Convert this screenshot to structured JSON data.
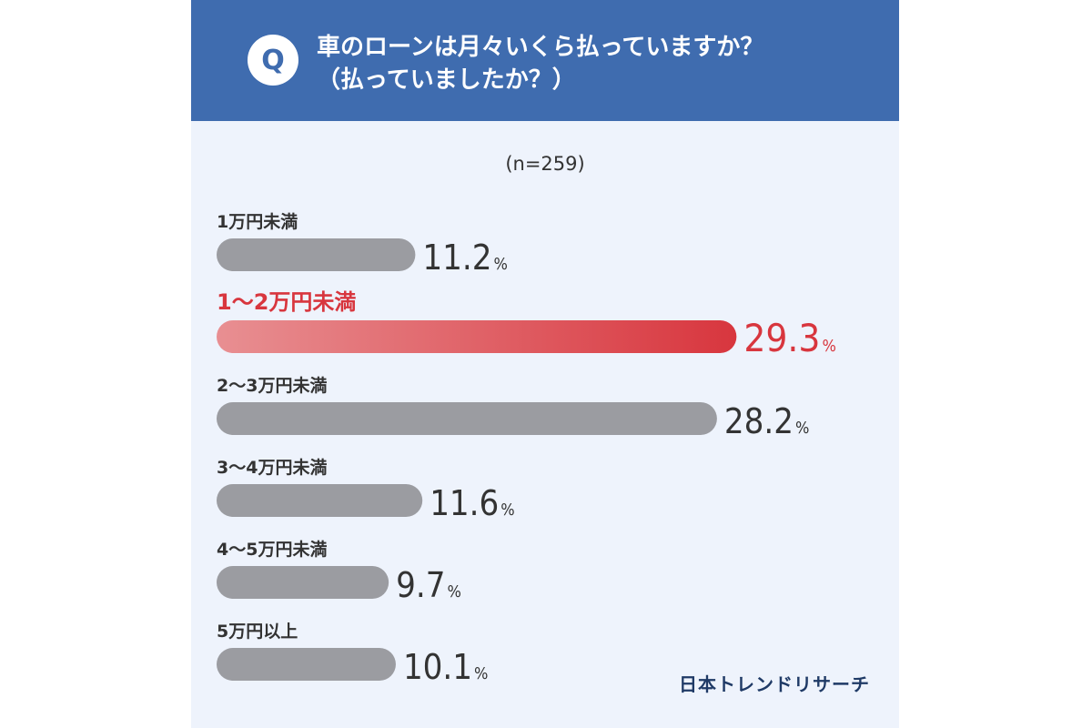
{
  "header": {
    "badge": "Q",
    "question_line1": "車のローンは月々いくら払っていますか？",
    "question_line2": "（払っていましたか？）"
  },
  "sample_size": "(n=259)",
  "brand": "日本トレンドリサーチ",
  "colors": {
    "header_bg": "#3f6caf",
    "card_bg": "#eef3fc",
    "bar_gray": "#9b9ca1",
    "highlight_red": "#d8363e",
    "highlight_red_light": "#e88f92",
    "text_dark": "#333333"
  },
  "chart_data": {
    "type": "bar",
    "orientation": "horizontal",
    "categories": [
      "1万円未満",
      "1〜2万円未満",
      "2〜3万円未満",
      "3〜4万円未満",
      "4〜5万円未満",
      "5万円以上"
    ],
    "values": [
      11.2,
      29.3,
      28.2,
      11.6,
      9.7,
      10.1
    ],
    "value_labels": [
      "11.2",
      "29.3",
      "28.2",
      "11.6",
      "9.7",
      "10.1"
    ],
    "unit": "%",
    "highlight_index": 1,
    "title": "",
    "xlabel": "",
    "ylabel": "",
    "grid": false,
    "legend": "none"
  }
}
